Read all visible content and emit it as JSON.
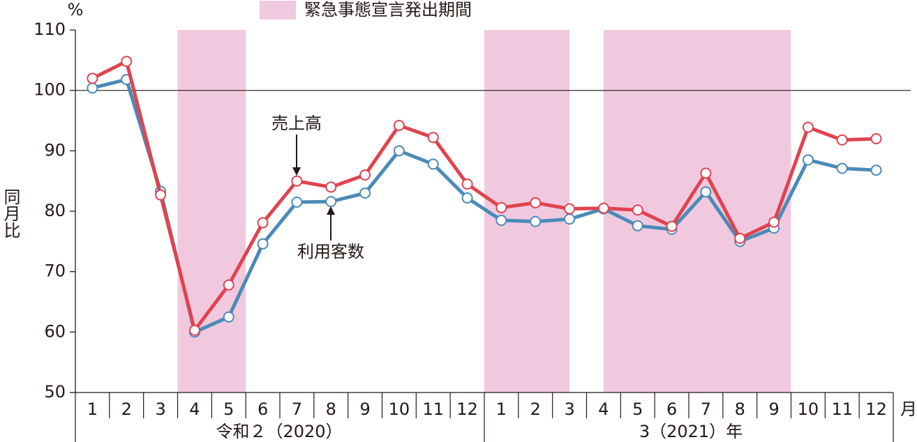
{
  "chart_data": {
    "type": "line",
    "legend_label": "緊急事態宣言発出期間",
    "legend_color": "#f1c9df",
    "shaded_periods": [
      [
        3,
        5
      ],
      [
        12,
        14.5
      ],
      [
        15.5,
        21
      ]
    ],
    "y_unit": "%",
    "ylabel": "同月比",
    "x_unit": "月",
    "categories": [
      "1",
      "2",
      "3",
      "4",
      "5",
      "6",
      "7",
      "8",
      "9",
      "10",
      "11",
      "12",
      "1",
      "2",
      "3",
      "4",
      "5",
      "6",
      "7",
      "8",
      "9",
      "10",
      "11",
      "12"
    ],
    "x_groups": [
      "令和２（2020）",
      "3（2021）年"
    ],
    "ylim": [
      50,
      110
    ],
    "yticks": [
      50,
      60,
      70,
      80,
      90,
      100,
      110
    ],
    "reference_line": 100,
    "series": [
      {
        "name": "売上高",
        "color": "#e0434f",
        "values": [
          102,
          104.8,
          82.7,
          60.3,
          67.8,
          78.1,
          85,
          84,
          86,
          94.2,
          92.2,
          84.5,
          80.6,
          81.4,
          80.4,
          80.5,
          80.2,
          77.5,
          86.3,
          75.5,
          78.2,
          93.9,
          91.8,
          92
        ]
      },
      {
        "name": "利用客数",
        "color": "#4a8ab8",
        "values": [
          100.4,
          101.8,
          83.3,
          60,
          62.5,
          74.6,
          81.5,
          81.6,
          83,
          90,
          87.8,
          82.2,
          78.5,
          78.3,
          78.7,
          80.4,
          77.6,
          77,
          83.2,
          75,
          77.2,
          88.5,
          87.1,
          86.8
        ]
      }
    ]
  }
}
